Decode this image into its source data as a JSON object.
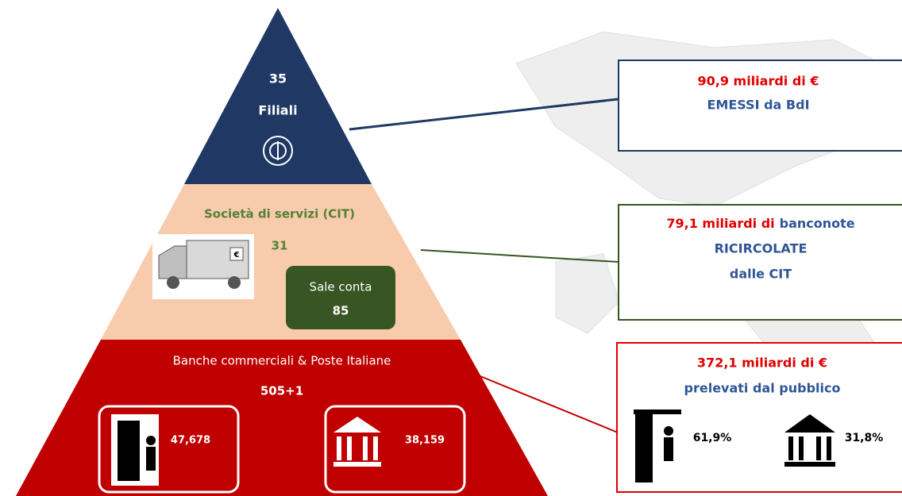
{
  "pyramid": {
    "top": {
      "count": "35",
      "label": "Filiali"
    },
    "middle": {
      "label": "Società di servizi (CIT)",
      "count": "31",
      "counting_rooms": {
        "label": "Sale conta",
        "count": "85"
      }
    },
    "bottom": {
      "label": "Banche commerciali & Poste Italiane",
      "count": "505+1",
      "atm": "47,678",
      "branches": "38,159"
    }
  },
  "boxes": [
    {
      "amount": "90,9 miliardi di €",
      "text": "EMESSI da BdI"
    },
    {
      "amount": "79,1 miliardi di",
      "text": "banconote",
      "line2": "RICIRCOLATE",
      "line3": "dalle CIT"
    },
    {
      "amount": "372,1 miliardi di €",
      "text": "prelevati dal pubblico",
      "atm_share": "61,9%",
      "branch_share": "31,8%"
    }
  ]
}
